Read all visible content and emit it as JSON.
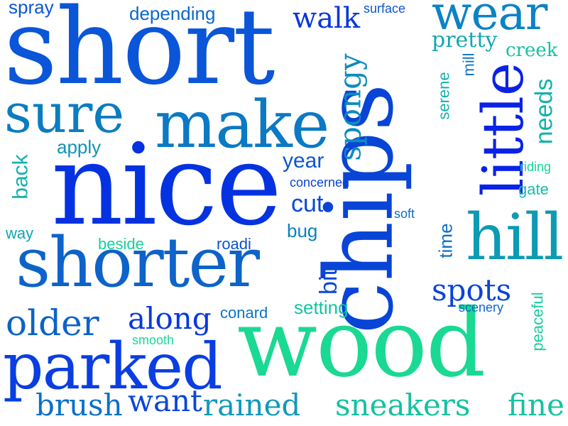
{
  "words": [
    {
      "text": "short",
      "color": "#0a55d8"
    },
    {
      "text": "chips",
      "color": "#0844d6"
    },
    {
      "text": "nice",
      "color": "#0532e0"
    },
    {
      "text": "wood",
      "color": "#1ad992"
    },
    {
      "text": "shorter",
      "color": "#0d63c9"
    },
    {
      "text": "parked",
      "color": "#0a3ee2"
    },
    {
      "text": "make",
      "color": "#0b79c4"
    },
    {
      "text": "sure",
      "color": "#0c7cc0"
    },
    {
      "text": "little",
      "color": "#0a22e6"
    },
    {
      "text": "hill",
      "color": "#0e9ab3"
    },
    {
      "text": "wear",
      "color": "#0c83c3"
    },
    {
      "text": "older",
      "color": "#0b63c8"
    },
    {
      "text": "spongy",
      "color": "#0e8cbe"
    },
    {
      "text": "along",
      "color": "#0838de"
    },
    {
      "text": "brush",
      "color": "#0c6fc8"
    },
    {
      "text": "want",
      "color": "#0b47d6"
    },
    {
      "text": "rained",
      "color": "#1099bb"
    },
    {
      "text": "sneakers",
      "color": "#14c2a0"
    },
    {
      "text": "fine",
      "color": "#14c39f"
    },
    {
      "text": "spots",
      "color": "#0b44d4"
    },
    {
      "text": "walk",
      "color": "#0a38da"
    },
    {
      "text": "depending",
      "color": "#0c68c8"
    },
    {
      "text": "spray",
      "color": "#0a56d6"
    },
    {
      "text": "surface",
      "color": "#0b56d2"
    },
    {
      "text": "pretty",
      "color": "#11a7b1"
    },
    {
      "text": "creek",
      "color": "#14c2a4"
    },
    {
      "text": "mill",
      "color": "#0c74c6"
    },
    {
      "text": "serene",
      "color": "#12b0ae"
    },
    {
      "text": "needs",
      "color": "#11b2ad"
    },
    {
      "text": "riding",
      "color": "#16d69a"
    },
    {
      "text": "gate",
      "color": "#13bfa6"
    },
    {
      "text": "back",
      "color": "#12b0ac"
    },
    {
      "text": "apply",
      "color": "#0f94b8"
    },
    {
      "text": "year",
      "color": "#0b55d4"
    },
    {
      "text": "concerned",
      "color": "#0a45d6"
    },
    {
      "text": "cut",
      "color": "#0b4ad4"
    },
    {
      "text": "soft",
      "color": "#0c6fc6"
    },
    {
      "text": "way",
      "color": "#11a4b4"
    },
    {
      "text": "beside",
      "color": "#16d19c"
    },
    {
      "text": "roadi",
      "color": "#0b52d3"
    },
    {
      "text": "bug",
      "color": "#0d80c2"
    },
    {
      "text": "bit",
      "color": "#0a48d6"
    },
    {
      "text": "time",
      "color": "#0c6ec8"
    },
    {
      "text": "setting",
      "color": "#13c4a2"
    },
    {
      "text": "scenery",
      "color": "#0c66c8"
    },
    {
      "text": "peaceful",
      "color": "#15cda0"
    },
    {
      "text": "conard",
      "color": "#0d74c6"
    },
    {
      "text": "smooth",
      "color": "#17d89a"
    }
  ]
}
